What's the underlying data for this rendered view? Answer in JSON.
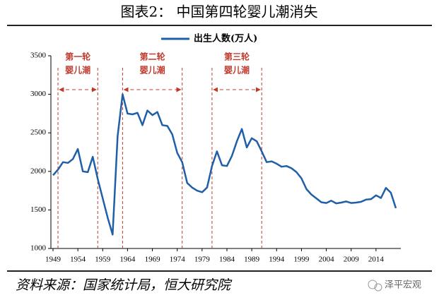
{
  "chart_data": {
    "type": "line",
    "title": "图表2： 中国第四轮婴儿潮消失",
    "source": "资料来源：国家统计局，恒大研究院",
    "watermark": "泽平宏观",
    "x": [
      1949,
      1950,
      1951,
      1952,
      1953,
      1954,
      1955,
      1956,
      1957,
      1958,
      1959,
      1960,
      1961,
      1962,
      1963,
      1964,
      1965,
      1966,
      1967,
      1968,
      1969,
      1970,
      1971,
      1972,
      1973,
      1974,
      1975,
      1976,
      1977,
      1978,
      1979,
      1980,
      1981,
      1982,
      1983,
      1984,
      1985,
      1986,
      1987,
      1988,
      1989,
      1990,
      1991,
      1992,
      1993,
      1994,
      1995,
      1996,
      1997,
      1998,
      1999,
      2000,
      2001,
      2002,
      2003,
      2004,
      2005,
      2006,
      2007,
      2008,
      2009,
      2010,
      2011,
      2012,
      2013,
      2014,
      2015,
      2016,
      2017,
      2018
    ],
    "series": [
      {
        "name": "出生人数(万人)",
        "color": "#1f5fa8",
        "values": [
          1950,
          2023,
          2120,
          2110,
          2160,
          2290,
          2000,
          1990,
          2190,
          1900,
          1650,
          1400,
          1180,
          2460,
          3000,
          2750,
          2740,
          2760,
          2600,
          2790,
          2730,
          2770,
          2600,
          2590,
          2480,
          2240,
          2120,
          1850,
          1790,
          1750,
          1730,
          1790,
          2070,
          2260,
          2080,
          2070,
          2200,
          2390,
          2550,
          2310,
          2430,
          2390,
          2260,
          2120,
          2130,
          2100,
          2060,
          2070,
          2040,
          1990,
          1910,
          1770,
          1700,
          1650,
          1600,
          1590,
          1620,
          1585,
          1595,
          1610,
          1590,
          1595,
          1605,
          1635,
          1640,
          1690,
          1655,
          1786,
          1723,
          1523
        ]
      }
    ],
    "xlim": [
      1949,
      2019
    ],
    "xticks": [
      1949,
      1954,
      1959,
      1964,
      1969,
      1974,
      1979,
      1984,
      1989,
      1994,
      1999,
      2004,
      2009,
      2014
    ],
    "ylim": [
      1000,
      3500
    ],
    "yticks": [
      1000,
      1500,
      2000,
      2500,
      3000,
      3500
    ],
    "annotations": [
      {
        "lines": [
          "第一轮",
          "婴儿潮"
        ],
        "start": 1950,
        "end": 1958
      },
      {
        "lines": [
          "第二轮",
          "婴儿潮"
        ],
        "start": 1963,
        "end": 1975
      },
      {
        "lines": [
          "第三轮",
          "婴儿潮"
        ],
        "start": 1981,
        "end": 1991
      }
    ],
    "annotation_color": "#c0392b"
  }
}
